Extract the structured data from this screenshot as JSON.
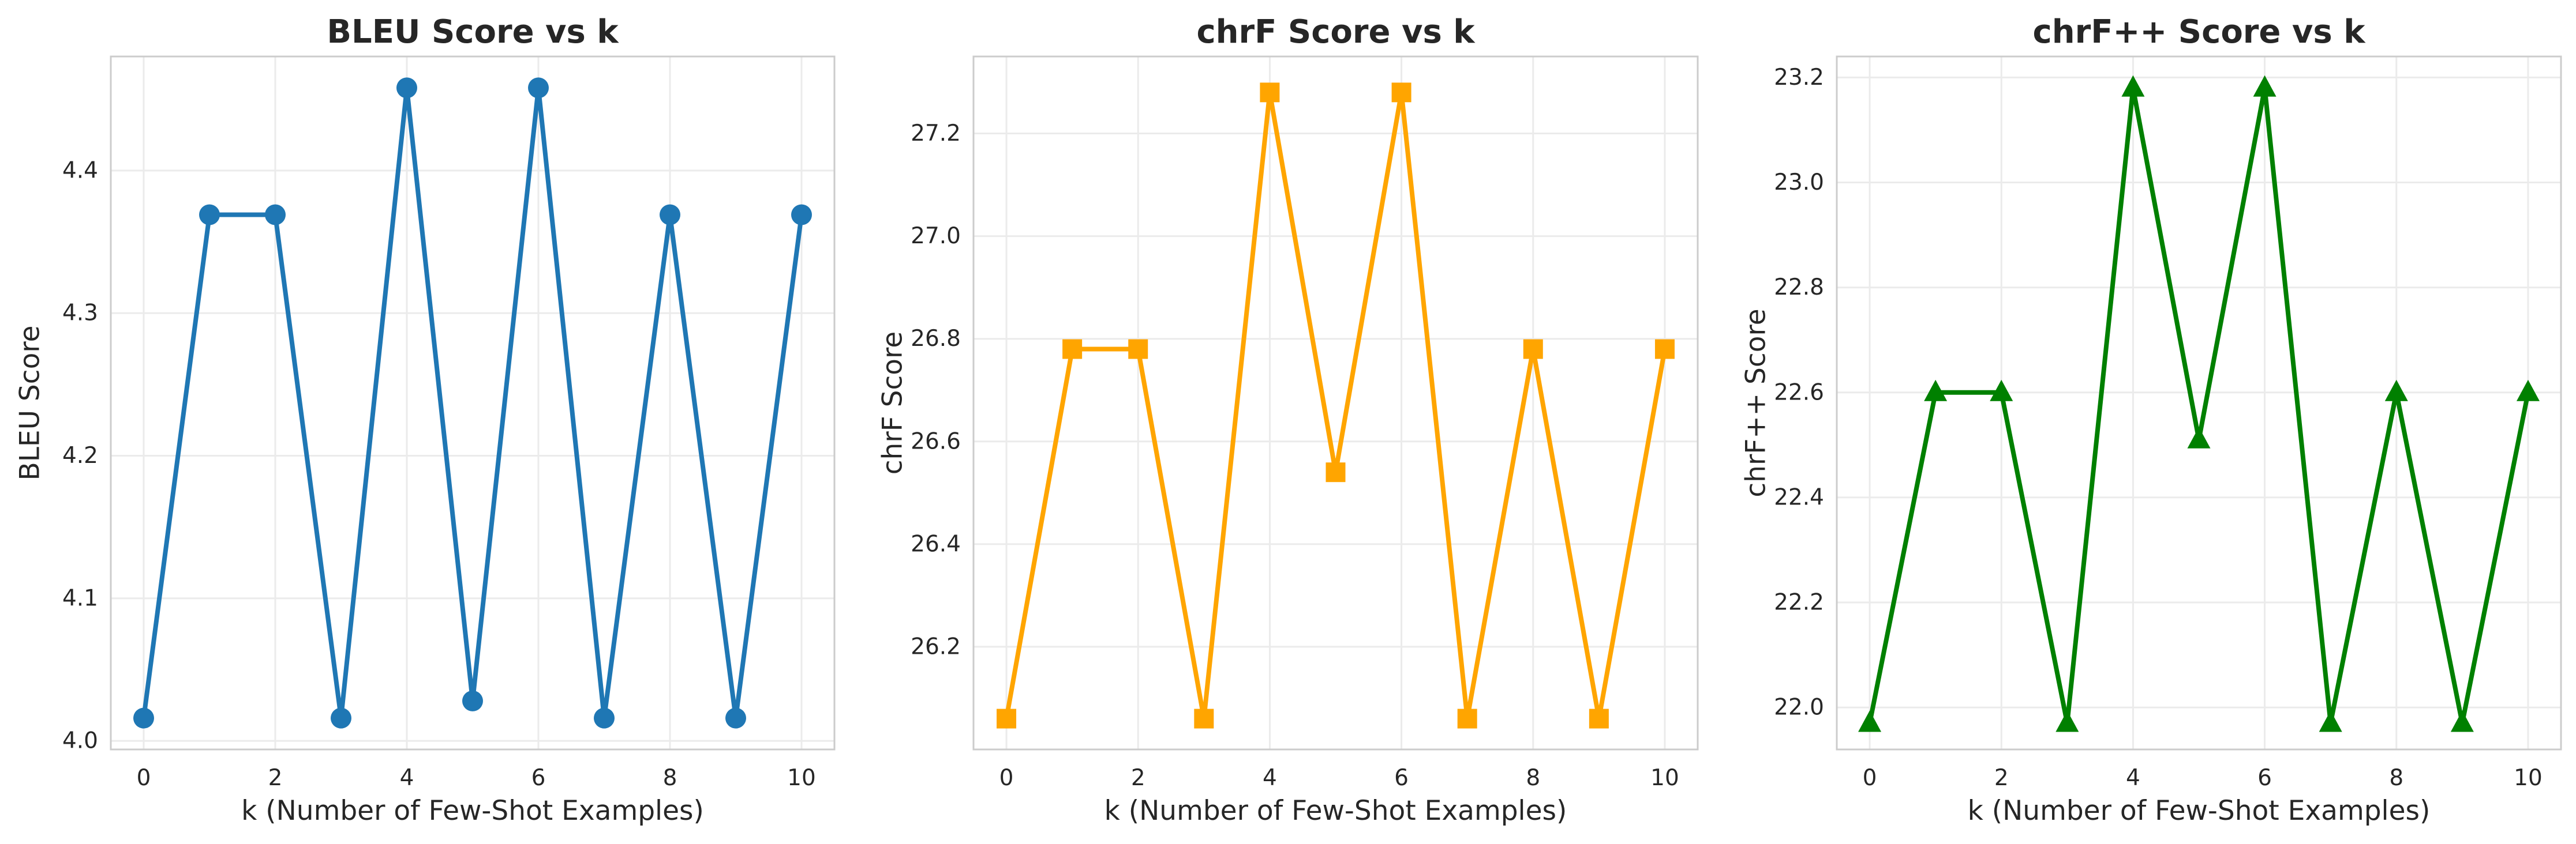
{
  "chart_data": [
    {
      "type": "line",
      "title": "BLEU Score vs k",
      "xlabel": "k (Number of Few-Shot Examples)",
      "ylabel": "BLEU Score",
      "x": [
        0,
        1,
        2,
        3,
        4,
        5,
        6,
        7,
        8,
        9,
        10
      ],
      "series": [
        {
          "values": [
            4.016,
            4.369,
            4.369,
            4.016,
            4.458,
            4.028,
            4.458,
            4.016,
            4.369,
            4.016,
            4.369
          ],
          "color": "#1f77b4",
          "marker": "circle"
        }
      ],
      "xlim": [
        -0.5,
        10.5
      ],
      "ylim": [
        3.994,
        4.48
      ],
      "xticks": [
        0,
        2,
        4,
        6,
        8,
        10
      ],
      "yticks": [
        4.0,
        4.1,
        4.2,
        4.3,
        4.4
      ],
      "ytick_labels": [
        "4.0",
        "4.1",
        "4.2",
        "4.3",
        "4.4"
      ],
      "grid": true
    },
    {
      "type": "line",
      "title": "chrF Score vs k",
      "xlabel": "k (Number of Few-Shot Examples)",
      "ylabel": "chrF Score",
      "x": [
        0,
        1,
        2,
        3,
        4,
        5,
        6,
        7,
        8,
        9,
        10
      ],
      "series": [
        {
          "values": [
            26.06,
            26.78,
            26.78,
            26.06,
            27.28,
            26.54,
            27.28,
            26.06,
            26.78,
            26.06,
            26.78
          ],
          "color": "#ffa500",
          "marker": "square"
        }
      ],
      "xlim": [
        -0.5,
        10.5
      ],
      "ylim": [
        26.0,
        27.35
      ],
      "xticks": [
        0,
        2,
        4,
        6,
        8,
        10
      ],
      "yticks": [
        26.2,
        26.4,
        26.6,
        26.8,
        27.0,
        27.2
      ],
      "ytick_labels": [
        "26.2",
        "26.4",
        "26.6",
        "26.8",
        "27.0",
        "27.2"
      ],
      "grid": true
    },
    {
      "type": "line",
      "title": "chrF++ Score vs k",
      "xlabel": "k (Number of Few-Shot Examples)",
      "ylabel": "chrF++ Score",
      "x": [
        0,
        1,
        2,
        3,
        4,
        5,
        6,
        7,
        8,
        9,
        10
      ],
      "series": [
        {
          "values": [
            21.97,
            22.6,
            22.6,
            21.97,
            23.18,
            22.51,
            23.18,
            21.97,
            22.6,
            21.97,
            22.6
          ],
          "color": "#008000",
          "marker": "triangle"
        }
      ],
      "xlim": [
        -0.5,
        10.5
      ],
      "ylim": [
        21.92,
        23.24
      ],
      "xticks": [
        0,
        2,
        4,
        6,
        8,
        10
      ],
      "yticks": [
        22.0,
        22.2,
        22.4,
        22.6,
        22.8,
        23.0,
        23.2
      ],
      "ytick_labels": [
        "22.0",
        "22.2",
        "22.4",
        "22.6",
        "22.8",
        "23.0",
        "23.2"
      ],
      "grid": true
    }
  ]
}
